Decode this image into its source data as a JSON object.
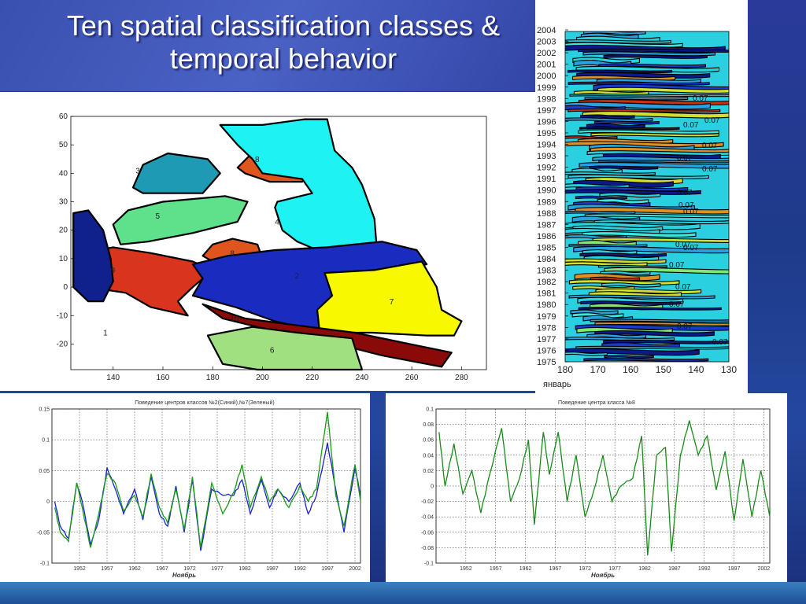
{
  "title": {
    "line1": "Ten spatial classification classes &",
    "line2": "temporal behavior"
  },
  "chart_data": [
    {
      "type": "heatmap",
      "name": "spatial classes map",
      "x_ticks": [
        "140",
        "160",
        "180",
        "200",
        "220",
        "240",
        "260",
        "280"
      ],
      "y_ticks": [
        "60",
        "50",
        "40",
        "30",
        "20",
        "10",
        "0",
        "-10",
        "-20"
      ],
      "xlim": [
        123,
        290
      ],
      "ylim": [
        -29,
        60
      ],
      "regions": [
        {
          "label": "3",
          "color": "#1e9ab4"
        },
        {
          "label": "8",
          "color": "#e0541e"
        },
        {
          "label": "5",
          "color": "#5fe08a"
        },
        {
          "label": "4",
          "color": "#1ef2f2"
        },
        {
          "label": "8",
          "color": "#e0541e"
        },
        {
          "label": "9",
          "color": "#d8341e"
        },
        {
          "label": "2",
          "color": "#1a2cc0"
        },
        {
          "label": "7",
          "color": "#f8f800"
        },
        {
          "label": "10",
          "color": "#8a0a0a"
        },
        {
          "label": "1",
          "color": "#10208c"
        },
        {
          "label": "6",
          "color": "#a0e080"
        }
      ]
    },
    {
      "type": "heatmap",
      "name": "temporal behavior contour",
      "y_ticks": [
        "2004",
        "2003",
        "2002",
        "2001",
        "2000",
        "1999",
        "1998",
        "1997",
        "1996",
        "1995",
        "1994",
        "1993",
        "1992",
        "1991",
        "1990",
        "1989",
        "1988",
        "1987",
        "1986",
        "1985",
        "1984",
        "1983",
        "1982",
        "1981",
        "1980",
        "1979",
        "1978",
        "1977",
        "1976",
        "1975"
      ],
      "x_ticks": [
        "180",
        "170",
        "160",
        "150",
        "140",
        "130"
      ],
      "xlabel": "январь",
      "contour_labels": [
        "0.07",
        "0.07",
        "0.07",
        "0.07",
        "0.07",
        "0.07",
        "0.07",
        "0.07",
        "0.07",
        "0.07",
        "0.07",
        "0.07",
        "0.07",
        "0.07",
        "0.07",
        "0.07"
      ]
    },
    {
      "type": "line",
      "title": "Поведение центров классов №2(Синий),№7(Зеленый)",
      "xlabel": "Ноябрь",
      "x_ticks": [
        "1952",
        "1957",
        "1962",
        "1967",
        "1972",
        "1977",
        "1982",
        "1987",
        "1992",
        "1997",
        "2002"
      ],
      "y_ticks": [
        "0.15",
        "0.1",
        "0.05",
        "0",
        "-0.05",
        "-0.1"
      ],
      "xlim": [
        1947,
        2003
      ],
      "ylim": [
        -0.1,
        0.15
      ],
      "grid": true,
      "series": [
        {
          "color": "#1a22d0",
          "values": [
            [
              1947.5,
              0.0
            ],
            [
              1948.5,
              -0.04
            ],
            [
              1950,
              -0.06
            ],
            [
              1951.5,
              0.03
            ],
            [
              1952.5,
              0.0
            ],
            [
              1954,
              -0.07
            ],
            [
              1955.5,
              -0.03
            ],
            [
              1957,
              0.055
            ],
            [
              1958.5,
              0.02
            ],
            [
              1960,
              -0.02
            ],
            [
              1962,
              0.02
            ],
            [
              1963.5,
              -0.03
            ],
            [
              1965,
              0.04
            ],
            [
              1966.5,
              -0.02
            ],
            [
              1968,
              -0.04
            ],
            [
              1969.5,
              0.025
            ],
            [
              1971,
              -0.05
            ],
            [
              1972.5,
              0.035
            ],
            [
              1974,
              -0.08
            ],
            [
              1976,
              0.02
            ],
            [
              1978,
              0.01
            ],
            [
              1980,
              0.01
            ],
            [
              1981.5,
              0.035
            ],
            [
              1983,
              -0.02
            ],
            [
              1985,
              0.035
            ],
            [
              1986.5,
              -0.01
            ],
            [
              1988,
              0.02
            ],
            [
              1990,
              0.0
            ],
            [
              1992,
              0.03
            ],
            [
              1993.5,
              -0.02
            ],
            [
              1995,
              0.01
            ],
            [
              1997,
              0.095
            ],
            [
              1998.5,
              0.02
            ],
            [
              2000,
              -0.05
            ],
            [
              2002,
              0.055
            ],
            [
              2003,
              0.01
            ]
          ]
        },
        {
          "color": "#1a9a1a",
          "values": [
            [
              1947.5,
              -0.01
            ],
            [
              1948.5,
              -0.05
            ],
            [
              1950,
              -0.065
            ],
            [
              1951.5,
              0.03
            ],
            [
              1952.5,
              -0.01
            ],
            [
              1954,
              -0.075
            ],
            [
              1955.5,
              -0.02
            ],
            [
              1957,
              0.045
            ],
            [
              1958.5,
              0.03
            ],
            [
              1960,
              -0.015
            ],
            [
              1962,
              0.01
            ],
            [
              1963.5,
              -0.025
            ],
            [
              1965,
              0.045
            ],
            [
              1966.5,
              -0.01
            ],
            [
              1968,
              -0.035
            ],
            [
              1969.5,
              0.02
            ],
            [
              1971,
              -0.045
            ],
            [
              1972.5,
              0.04
            ],
            [
              1974,
              -0.075
            ],
            [
              1976,
              0.03
            ],
            [
              1978,
              -0.02
            ],
            [
              1980,
              0.015
            ],
            [
              1981.5,
              0.06
            ],
            [
              1983,
              -0.01
            ],
            [
              1985,
              0.04
            ],
            [
              1986.5,
              0.0
            ],
            [
              1988,
              0.02
            ],
            [
              1990,
              -0.01
            ],
            [
              1992,
              0.025
            ],
            [
              1993.5,
              0.0
            ],
            [
              1995,
              0.02
            ],
            [
              1997,
              0.145
            ],
            [
              1998.5,
              0.01
            ],
            [
              2000,
              -0.04
            ],
            [
              2002,
              0.06
            ],
            [
              2003,
              0.0
            ]
          ]
        }
      ]
    },
    {
      "type": "line",
      "title": "Поведение центра класса №8",
      "xlabel": "Ноябрь",
      "x_ticks": [
        "1952",
        "1957",
        "1962",
        "1967",
        "1972",
        "1977",
        "1982",
        "1987",
        "1992",
        "1997",
        "2002"
      ],
      "y_ticks": [
        "0.1",
        "0.08",
        "0.06",
        "0.04",
        "0.02",
        "0",
        "-0.02",
        "-0.04",
        "-0.06",
        "-0.08",
        "-0.1"
      ],
      "xlim": [
        1947,
        2003
      ],
      "ylim": [
        -0.1,
        0.1
      ],
      "grid": true,
      "series": [
        {
          "color": "#1a8a1a",
          "values": [
            [
              1947.5,
              0.07
            ],
            [
              1948.5,
              0.0
            ],
            [
              1950,
              0.055
            ],
            [
              1951.5,
              -0.01
            ],
            [
              1953,
              0.02
            ],
            [
              1954.5,
              -0.035
            ],
            [
              1956,
              0.015
            ],
            [
              1958,
              0.075
            ],
            [
              1959.5,
              -0.02
            ],
            [
              1961,
              0.01
            ],
            [
              1962.5,
              0.06
            ],
            [
              1963.5,
              -0.05
            ],
            [
              1965,
              0.07
            ],
            [
              1966,
              0.015
            ],
            [
              1967.5,
              0.07
            ],
            [
              1969,
              -0.02
            ],
            [
              1970.5,
              0.04
            ],
            [
              1972,
              -0.04
            ],
            [
              1973.5,
              -0.005
            ],
            [
              1975,
              0.04
            ],
            [
              1976.5,
              -0.02
            ],
            [
              1978,
              0.0
            ],
            [
              1980,
              0.01
            ],
            [
              1981.5,
              0.065
            ],
            [
              1982.5,
              -0.09
            ],
            [
              1984,
              0.04
            ],
            [
              1985.5,
              0.05
            ],
            [
              1986.5,
              -0.085
            ],
            [
              1988,
              0.04
            ],
            [
              1989.5,
              0.085
            ],
            [
              1991,
              0.04
            ],
            [
              1992.5,
              0.065
            ],
            [
              1994,
              -0.005
            ],
            [
              1995.5,
              0.045
            ],
            [
              1997,
              -0.045
            ],
            [
              1998.5,
              0.035
            ],
            [
              2000,
              -0.04
            ],
            [
              2001.5,
              0.02
            ],
            [
              2003,
              -0.04
            ]
          ]
        }
      ]
    }
  ]
}
